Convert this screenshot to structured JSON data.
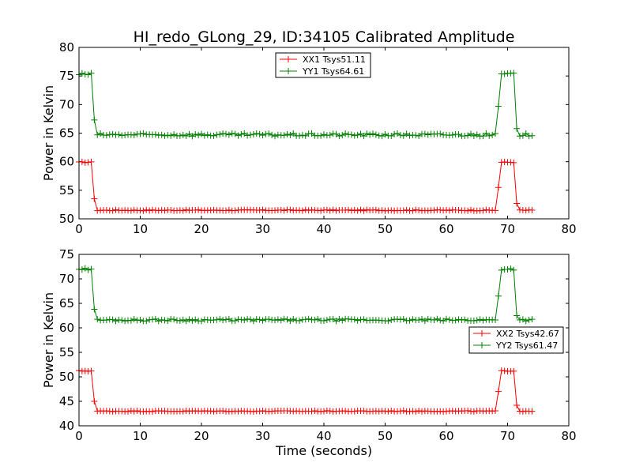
{
  "chart_data": [
    {
      "type": "line",
      "title": "HI_redo_GLong_29, ID:34105 Calibrated Amplitude",
      "xlabel": "",
      "ylabel": "Power in Kelvin",
      "xlim": [
        0,
        80
      ],
      "ylim": [
        50,
        80
      ],
      "xticks": [
        "0",
        "10",
        "20",
        "30",
        "40",
        "50",
        "60",
        "70",
        "80"
      ],
      "yticks": [
        "50",
        "55",
        "60",
        "65",
        "70",
        "75",
        "80"
      ],
      "legend_position": "upper-center",
      "series": [
        {
          "name": "XX1 Tsys51.11",
          "color": "#ff0000",
          "marker": "+",
          "x_start": 0,
          "x_step": 0.5,
          "count": 149,
          "base": 51.5,
          "high": 59.9,
          "noise": 0.08,
          "knots": [
            [
              2.0,
              "high"
            ],
            [
              2.5,
              53.5
            ],
            [
              3.0,
              "base"
            ],
            [
              68.0,
              "base"
            ],
            [
              68.5,
              55.5
            ],
            [
              69.0,
              "high"
            ],
            [
              71.0,
              "high"
            ],
            [
              71.5,
              52.7
            ],
            [
              72.0,
              "base"
            ]
          ]
        },
        {
          "name": "YY1 Tsys64.61",
          "color": "#008000",
          "marker": "+",
          "x_start": 0,
          "x_step": 0.5,
          "count": 149,
          "base": 64.7,
          "high": 75.3,
          "noise": 0.25,
          "knots": [
            [
              2.0,
              "high"
            ],
            [
              2.5,
              67.3
            ],
            [
              3.0,
              "base"
            ],
            [
              68.0,
              "base"
            ],
            [
              68.5,
              69.7
            ],
            [
              69.0,
              "high"
            ],
            [
              71.0,
              "high"
            ],
            [
              71.5,
              65.8
            ],
            [
              72.0,
              "base"
            ]
          ]
        }
      ]
    },
    {
      "type": "line",
      "title": "",
      "xlabel": "Time (seconds)",
      "ylabel": "Power in Kelvin",
      "xlim": [
        0,
        80
      ],
      "ylim": [
        40,
        75
      ],
      "xticks": [
        "0",
        "10",
        "20",
        "30",
        "40",
        "50",
        "60",
        "70",
        "80"
      ],
      "yticks": [
        "40",
        "45",
        "50",
        "55",
        "60",
        "65",
        "70",
        "75"
      ],
      "legend_position": "center-right",
      "series": [
        {
          "name": "XX2 Tsys42.67",
          "color": "#ff0000",
          "marker": "+",
          "x_start": 0,
          "x_step": 0.5,
          "count": 149,
          "base": 43.0,
          "high": 51.2,
          "noise": 0.08,
          "knots": [
            [
              2.0,
              "high"
            ],
            [
              2.5,
              45.0
            ],
            [
              3.0,
              "base"
            ],
            [
              68.0,
              "base"
            ],
            [
              68.5,
              47.0
            ],
            [
              69.0,
              "high"
            ],
            [
              71.0,
              "high"
            ],
            [
              71.5,
              44.2
            ],
            [
              72.0,
              "base"
            ]
          ]
        },
        {
          "name": "YY2 Tsys61.47",
          "color": "#008000",
          "marker": "+",
          "x_start": 0,
          "x_step": 0.5,
          "count": 149,
          "base": 61.6,
          "high": 72.0,
          "noise": 0.22,
          "knots": [
            [
              2.0,
              "high"
            ],
            [
              2.5,
              63.8
            ],
            [
              3.0,
              "base"
            ],
            [
              68.0,
              "base"
            ],
            [
              68.5,
              66.5
            ],
            [
              69.0,
              "high"
            ],
            [
              71.0,
              "high"
            ],
            [
              71.5,
              62.5
            ],
            [
              72.0,
              "base"
            ]
          ]
        }
      ]
    }
  ]
}
